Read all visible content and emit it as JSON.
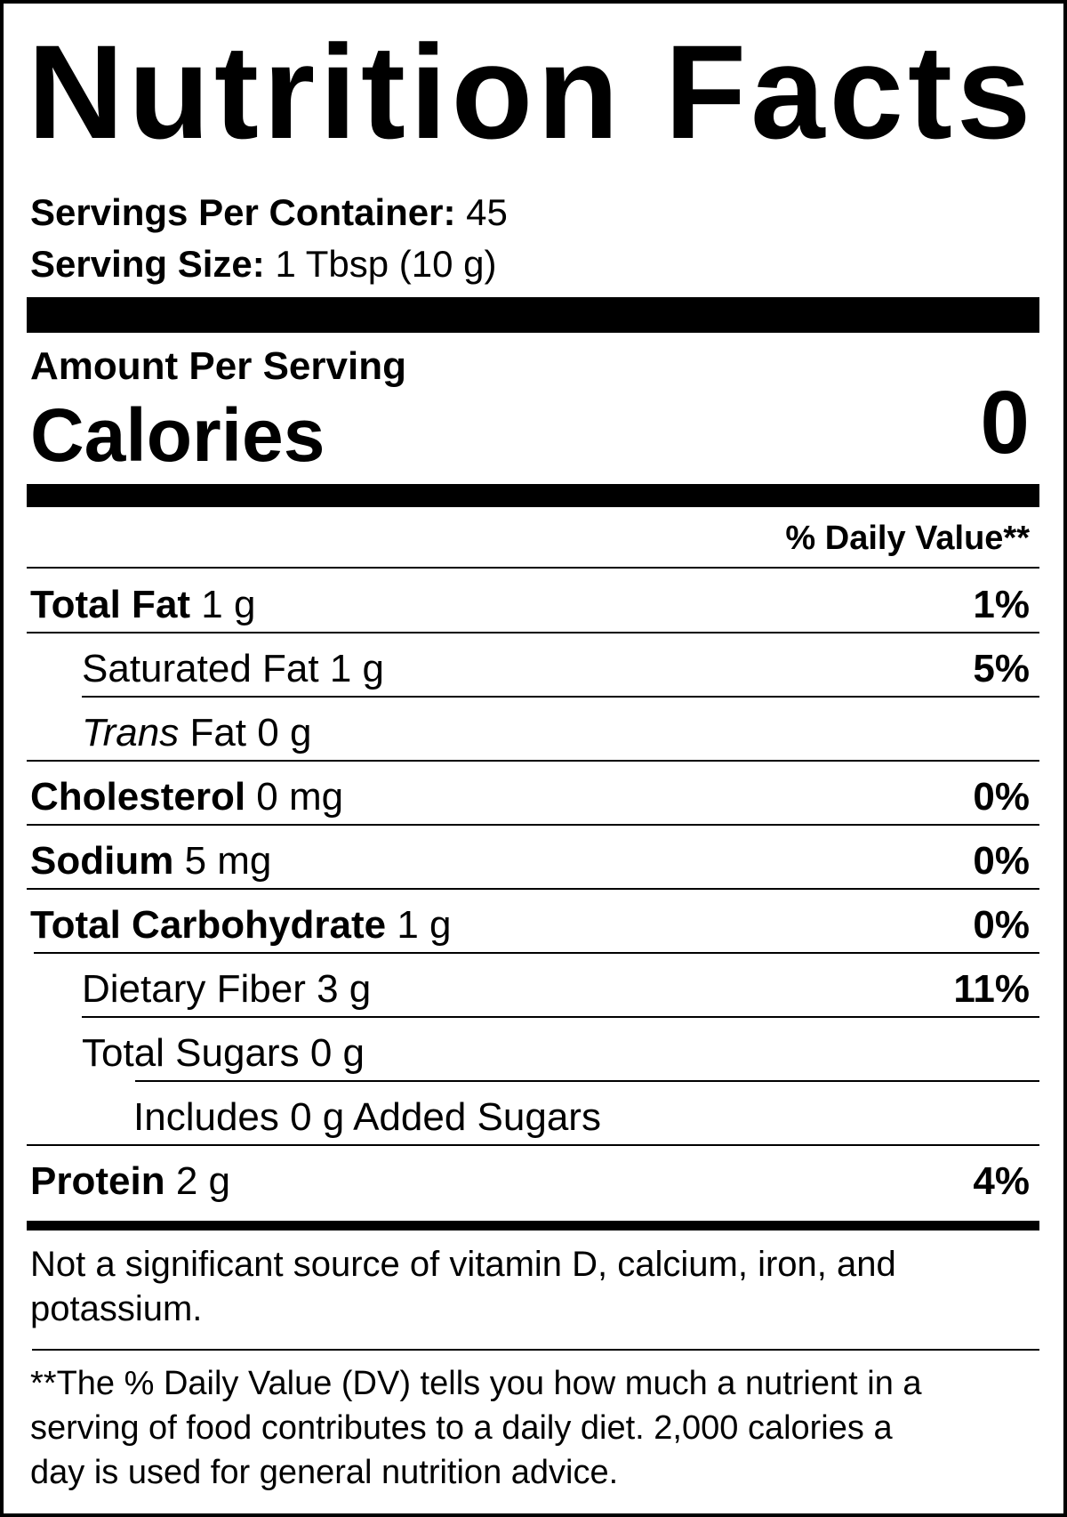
{
  "title": "Nutrition Facts",
  "servings": {
    "label": "Servings Per Container:",
    "value": "45"
  },
  "serving_size": {
    "label": "Serving Size:",
    "value": "1 Tbsp (10 g)"
  },
  "amount_per_serving": "Amount Per Serving",
  "calories": {
    "label": "Calories",
    "value": "0"
  },
  "daily_value_header": "% Daily Value**",
  "nutrients": [
    {
      "name": "Total Fat",
      "amount": "1 g",
      "dv": "1%",
      "bold": true,
      "indent": 0
    },
    {
      "name": "Saturated Fat",
      "amount": "1 g",
      "dv": "5%",
      "bold": false,
      "indent": 1
    },
    {
      "name": "Trans",
      "name_suffix": "Fat",
      "amount": "0 g",
      "dv": "",
      "bold": false,
      "indent": 1
    },
    {
      "name": "Cholesterol",
      "amount": "0 mg",
      "dv": "0%",
      "bold": true,
      "indent": 0
    },
    {
      "name": "Sodium",
      "amount": "5 mg",
      "dv": "0%",
      "bold": true,
      "indent": 0
    },
    {
      "name": "Total Carbohydrate",
      "amount": "1 g",
      "dv": "0%",
      "bold": true,
      "indent": 0
    },
    {
      "name": "Dietary Fiber",
      "amount": "3 g",
      "dv": "11%",
      "bold": false,
      "indent": 1
    },
    {
      "name": "Total Sugars",
      "amount": "0 g",
      "dv": "",
      "bold": false,
      "indent": 1
    },
    {
      "name": "Includes 0 g Added Sugars",
      "amount": "",
      "dv": "",
      "bold": false,
      "indent": 2
    },
    {
      "name": "Protein",
      "amount": "2 g",
      "dv": "4%",
      "bold": true,
      "indent": 0
    }
  ],
  "not_significant": [
    "Not a significant source of vitamin D, calcium, iron, and",
    "potassium."
  ],
  "footnote": [
    "**The % Daily Value (DV) tells you how much a nutrient in a",
    "serving of food contributes to a daily diet. 2,000 calories a",
    "day is used for general nutrition advice."
  ]
}
